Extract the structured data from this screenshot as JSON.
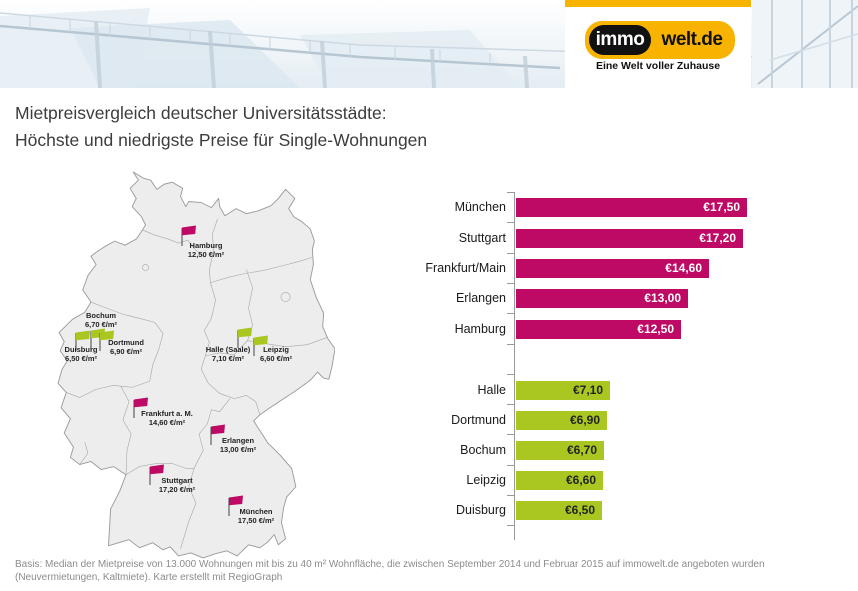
{
  "header": {
    "logo": {
      "part1": "immo",
      "part2": "welt.de",
      "tagline": "Eine Welt voller Zuhause"
    }
  },
  "title": {
    "line1": "Mietpreisvergleich deutscher Universitätsstädte:",
    "line2": "Höchste und niedrigste Preise für Single-Wohnungen"
  },
  "map": {
    "cities": [
      {
        "name": "Hamburg",
        "price": "12,50 €/m²",
        "group": "high"
      },
      {
        "name": "Bochum",
        "price": "6,70 €/m²",
        "group": "low"
      },
      {
        "name": "Duisburg",
        "price": "6,50 €/m²",
        "group": "low"
      },
      {
        "name": "Dortmund",
        "price": "6,90 €/m²",
        "group": "low"
      },
      {
        "name": "Halle (Saale)",
        "price": "7,10 €/m²",
        "group": "low"
      },
      {
        "name": "Leipzig",
        "price": "6,60 €/m²",
        "group": "low"
      },
      {
        "name": "Frankfurt a. M.",
        "price": "14,60 €/m²",
        "group": "high"
      },
      {
        "name": "Erlangen",
        "price": "13,00 €/m²",
        "group": "high"
      },
      {
        "name": "Stuttgart",
        "price": "17,20 €/m²",
        "group": "high"
      },
      {
        "name": "München",
        "price": "17,50 €/m²",
        "group": "high"
      }
    ]
  },
  "chart_data": {
    "type": "bar",
    "orientation": "horizontal",
    "unit": "€/m²",
    "xlim": [
      0,
      18.5
    ],
    "grid": false,
    "series": [
      {
        "name": "Höchste Preise",
        "color": "#BE0A64",
        "categories": [
          "München",
          "Stuttgart",
          "Frankfurt/Main",
          "Erlangen",
          "Hamburg"
        ],
        "values": [
          17.5,
          17.2,
          14.6,
          13.0,
          12.5
        ],
        "labels": [
          "€17,50",
          "€17,20",
          "€14,60",
          "€13,00",
          "€12,50"
        ]
      },
      {
        "name": "Niedrigste Preise",
        "color": "#A9C720",
        "categories": [
          "Halle",
          "Dortmund",
          "Bochum",
          "Leipzig",
          "Duisburg"
        ],
        "values": [
          7.1,
          6.9,
          6.7,
          6.6,
          6.5
        ],
        "labels": [
          "€7,10",
          "€6,90",
          "€6,70",
          "€6,60",
          "€6,50"
        ]
      }
    ]
  },
  "colors": {
    "magenta": "#BE0A64",
    "green": "#A9C720",
    "brand_yellow": "#F8B200"
  },
  "footer": {
    "line1": "Basis: Median der Mietpreise von 13.000 Wohnungen mit bis zu 40 m² Wohnfläche, die zwischen September 2014 und Februar 2015 auf immowelt.de angeboten wurden",
    "line2": "(Neuvermietungen, Kaltmiete). Karte erstellt mit RegioGraph"
  }
}
